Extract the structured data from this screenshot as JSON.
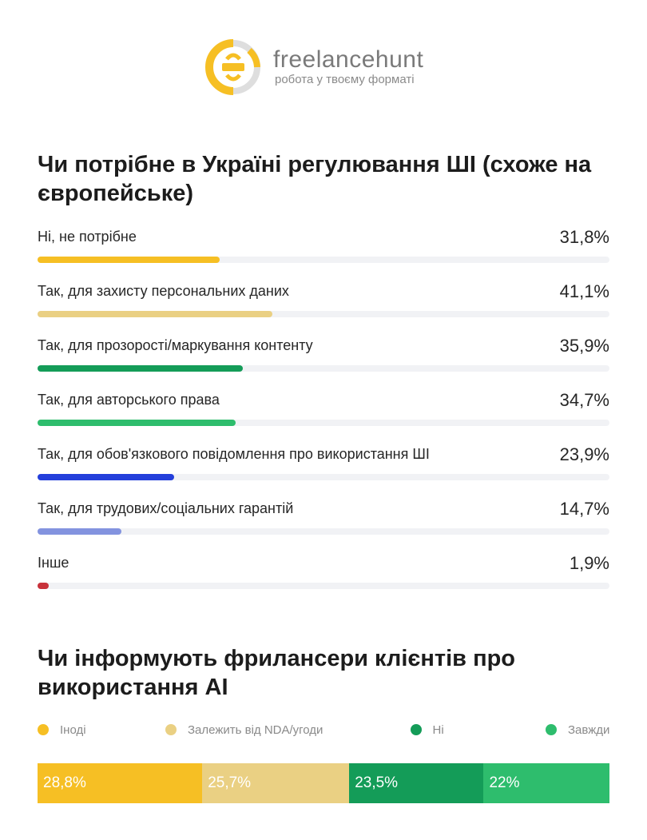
{
  "brand": {
    "name": "freelancehunt",
    "tagline": "робота у твоєму форматі",
    "logo_icon": "freelancehunt-logo-icon",
    "colors": {
      "logo_yellow": "#f6bf24",
      "logo_grey": "#dedede"
    }
  },
  "chart_data": [
    {
      "type": "bar",
      "orientation": "horizontal",
      "title": "Чи потрібне в Україні регулювання ШІ (схоже на європейське)",
      "categories": [
        "Ні, не потрібне",
        "Так, для захисту персональних даних",
        "Так, для прозорості/маркування контенту",
        "Так, для авторського права",
        "Так, для обов'язкового повідомлення про використання ШІ",
        "Так, для трудових/соціальних гарантій",
        "Інше"
      ],
      "values": [
        31.8,
        41.1,
        35.9,
        34.7,
        23.9,
        14.7,
        1.9
      ],
      "value_labels": [
        "31,8%",
        "41,1%",
        "35,9%",
        "34,7%",
        "23,9%",
        "14,7%",
        "1,9%"
      ],
      "colors": [
        "#f6bf24",
        "#ead083",
        "#149c58",
        "#2ebd6d",
        "#243fdb",
        "#8393df",
        "#c8323b"
      ],
      "track_color": "#f1f2f5",
      "xlim": [
        0,
        100
      ],
      "grid": false
    },
    {
      "type": "bar",
      "orientation": "stacked-100",
      "title": "Чи інформують фрилансери клієнтів про використання AI",
      "series": [
        {
          "name": "Іноді",
          "value": 28.8,
          "label": "28,8%",
          "color": "#f6bf24"
        },
        {
          "name": "Залежить від NDA/угоди",
          "value": 25.7,
          "label": "25,7%",
          "color": "#ead083"
        },
        {
          "name": "Ні",
          "value": 23.5,
          "label": "23,5%",
          "color": "#149c58"
        },
        {
          "name": "Завжди",
          "value": 22,
          "label": "22%",
          "color": "#2ebd6d"
        }
      ],
      "legend": "top",
      "grid": false
    }
  ]
}
